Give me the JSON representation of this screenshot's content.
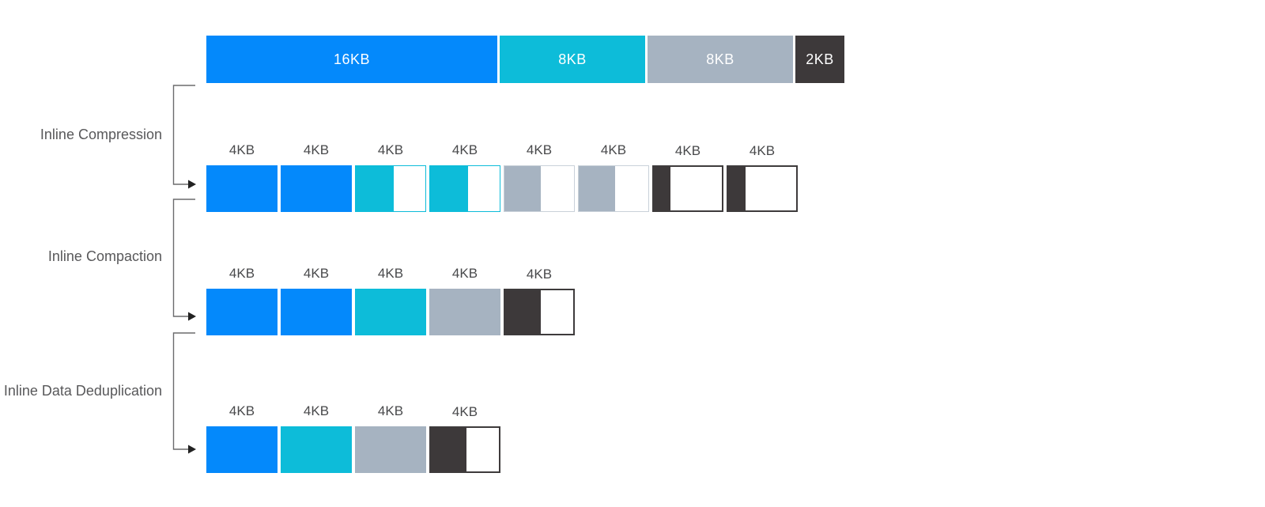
{
  "palette": {
    "blue": "#0489fb",
    "cyan": "#0dbcd9",
    "gray": "#a6b3c1",
    "dark": "#3d393a",
    "gray_partial_border": "#c9d1d9",
    "dark_partial_border": "#3e3b3c",
    "connector_line": "#6b6b6d",
    "arrowhead": "#222222",
    "stage_label_text": "#58585a",
    "block_label_text": "#48494b",
    "bar_label_text": "#ffffff"
  },
  "source_bar": {
    "segments": [
      {
        "label": "16KB",
        "kb": 16,
        "color": "blue"
      },
      {
        "label": "8KB",
        "kb": 8,
        "color": "cyan"
      },
      {
        "label": "8KB",
        "kb": 8,
        "color": "gray"
      },
      {
        "label": "2KB",
        "kb": 2,
        "color": "dark"
      }
    ]
  },
  "stages": [
    {
      "label": "Inline Compression",
      "blocks": [
        {
          "label": "4KB",
          "color": "blue",
          "fill": 1.0
        },
        {
          "label": "4KB",
          "color": "blue",
          "fill": 1.0
        },
        {
          "label": "4KB",
          "color": "cyan",
          "fill": 0.55
        },
        {
          "label": "4KB",
          "color": "cyan",
          "fill": 0.55
        },
        {
          "label": "4KB",
          "color": "gray",
          "fill": 0.52
        },
        {
          "label": "4KB",
          "color": "gray",
          "fill": 0.52
        },
        {
          "label": "4KB",
          "color": "dark",
          "fill": 0.24
        },
        {
          "label": "4KB",
          "color": "dark",
          "fill": 0.26
        }
      ]
    },
    {
      "label": "Inline Compaction",
      "blocks": [
        {
          "label": "4KB",
          "color": "blue",
          "fill": 1.0
        },
        {
          "label": "4KB",
          "color": "blue",
          "fill": 1.0
        },
        {
          "label": "4KB",
          "color": "cyan",
          "fill": 1.0
        },
        {
          "label": "4KB",
          "color": "gray",
          "fill": 1.0
        },
        {
          "label": "4KB",
          "color": "dark",
          "fill": 0.52
        }
      ]
    },
    {
      "label": "Inline Data Deduplication",
      "blocks": [
        {
          "label": "4KB",
          "color": "blue",
          "fill": 1.0
        },
        {
          "label": "4KB",
          "color": "cyan",
          "fill": 1.0
        },
        {
          "label": "4KB",
          "color": "gray",
          "fill": 1.0
        },
        {
          "label": "4KB",
          "color": "dark",
          "fill": 0.52
        }
      ]
    }
  ]
}
